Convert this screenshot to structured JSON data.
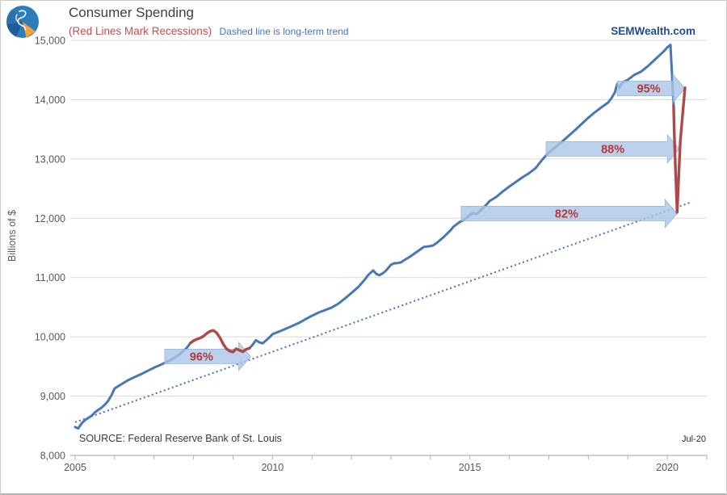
{
  "header": {
    "title": "Consumer Spending",
    "subtitle_red": "(Red Lines Mark Recessions)",
    "subtitle_trend": "Dashed line is long-term trend",
    "website": "SEMWealth.com"
  },
  "colors": {
    "line_blue": "#4878b4",
    "recession_red": "#ad4a47",
    "trend_blue": "#4472c4",
    "arrow_fill": "#aac4e5",
    "arrow_stroke": "#93b3da",
    "arrow_label": "#b23b3b",
    "grid": "#d9d9d9",
    "axis": "#b0b0b0",
    "axis_text": "#595959"
  },
  "chart_data": {
    "type": "line",
    "title": "Consumer Spending",
    "ylabel": "Billions of $",
    "source": "SOURCE:  Federal Reserve Bank of St. Louis",
    "last_point_label": "Jul-20",
    "grid": true,
    "y_axis": {
      "min": 8000,
      "max": 15000,
      "step": 1000,
      "values": [
        15000,
        14000,
        13000,
        12000,
        11000,
        10000,
        9000,
        8000
      ],
      "labels": [
        "15,000",
        "14,000",
        "13,000",
        "12,000",
        "11,000",
        "10,000",
        "9,000",
        "8,000"
      ]
    },
    "x_axis": {
      "min_year": 2005,
      "max_year": 2021,
      "labeled_values": [
        2005,
        2010,
        2015,
        2020
      ],
      "labeled_ticks": [
        "2005",
        "2010",
        "2015",
        "2020"
      ]
    },
    "trend": {
      "name": "long-term trend",
      "style": "dotted",
      "points": [
        [
          2005.0,
          8560
        ],
        [
          2020.6,
          12270
        ]
      ]
    },
    "series": [
      {
        "name": "consumer-spending-2005-2007",
        "role": "spending",
        "points": [
          [
            2005.0,
            8480
          ],
          [
            2005.08,
            8455
          ],
          [
            2005.17,
            8545
          ],
          [
            2005.25,
            8595
          ],
          [
            2005.33,
            8630
          ],
          [
            2005.42,
            8670
          ],
          [
            2005.5,
            8725
          ],
          [
            2005.58,
            8765
          ],
          [
            2005.67,
            8805
          ],
          [
            2005.75,
            8855
          ],
          [
            2005.83,
            8915
          ],
          [
            2005.92,
            9015
          ],
          [
            2006.0,
            9130
          ],
          [
            2006.17,
            9200
          ],
          [
            2006.33,
            9265
          ],
          [
            2006.5,
            9320
          ],
          [
            2006.67,
            9370
          ],
          [
            2006.83,
            9425
          ],
          [
            2007.0,
            9480
          ],
          [
            2007.17,
            9530
          ],
          [
            2007.33,
            9580
          ],
          [
            2007.5,
            9640
          ],
          [
            2007.67,
            9720
          ],
          [
            2007.83,
            9815
          ],
          [
            2007.92,
            9895
          ]
        ]
      },
      {
        "name": "consumer-spending-2009-2020",
        "role": "spending",
        "points": [
          [
            2009.42,
            9810
          ],
          [
            2009.5,
            9870
          ],
          [
            2009.58,
            9945
          ],
          [
            2009.67,
            9905
          ],
          [
            2009.75,
            9890
          ],
          [
            2009.83,
            9935
          ],
          [
            2009.92,
            9990
          ],
          [
            2010.0,
            10045
          ],
          [
            2010.17,
            10090
          ],
          [
            2010.33,
            10135
          ],
          [
            2010.5,
            10185
          ],
          [
            2010.67,
            10235
          ],
          [
            2010.83,
            10295
          ],
          [
            2011.0,
            10355
          ],
          [
            2011.17,
            10410
          ],
          [
            2011.33,
            10450
          ],
          [
            2011.5,
            10495
          ],
          [
            2011.67,
            10560
          ],
          [
            2011.83,
            10645
          ],
          [
            2012.0,
            10740
          ],
          [
            2012.17,
            10840
          ],
          [
            2012.33,
            10960
          ],
          [
            2012.42,
            11040
          ],
          [
            2012.55,
            11120
          ],
          [
            2012.63,
            11060
          ],
          [
            2012.71,
            11040
          ],
          [
            2012.79,
            11070
          ],
          [
            2012.88,
            11120
          ],
          [
            2013.0,
            11215
          ],
          [
            2013.08,
            11240
          ],
          [
            2013.17,
            11245
          ],
          [
            2013.25,
            11255
          ],
          [
            2013.33,
            11290
          ],
          [
            2013.5,
            11360
          ],
          [
            2013.67,
            11440
          ],
          [
            2013.83,
            11515
          ],
          [
            2013.92,
            11525
          ],
          [
            2014.0,
            11530
          ],
          [
            2014.08,
            11545
          ],
          [
            2014.17,
            11590
          ],
          [
            2014.33,
            11680
          ],
          [
            2014.5,
            11790
          ],
          [
            2014.58,
            11855
          ],
          [
            2014.67,
            11900
          ],
          [
            2014.75,
            11940
          ],
          [
            2014.83,
            11965
          ],
          [
            2014.92,
            12010
          ],
          [
            2015.0,
            12060
          ],
          [
            2015.08,
            12085
          ],
          [
            2015.17,
            12070
          ],
          [
            2015.25,
            12120
          ],
          [
            2015.33,
            12170
          ],
          [
            2015.42,
            12230
          ],
          [
            2015.5,
            12290
          ],
          [
            2015.67,
            12360
          ],
          [
            2015.83,
            12450
          ],
          [
            2016.0,
            12535
          ],
          [
            2016.17,
            12615
          ],
          [
            2016.33,
            12690
          ],
          [
            2016.5,
            12760
          ],
          [
            2016.67,
            12850
          ],
          [
            2016.83,
            12985
          ],
          [
            2017.0,
            13110
          ],
          [
            2017.17,
            13200
          ],
          [
            2017.33,
            13290
          ],
          [
            2017.5,
            13390
          ],
          [
            2017.67,
            13490
          ],
          [
            2017.83,
            13590
          ],
          [
            2018.0,
            13695
          ],
          [
            2018.17,
            13790
          ],
          [
            2018.33,
            13870
          ],
          [
            2018.5,
            13950
          ],
          [
            2018.58,
            14020
          ],
          [
            2018.67,
            14120
          ],
          [
            2018.73,
            14265
          ],
          [
            2018.79,
            14200
          ],
          [
            2018.85,
            14280
          ],
          [
            2018.92,
            14310
          ],
          [
            2019.0,
            14335
          ],
          [
            2019.17,
            14420
          ],
          [
            2019.33,
            14470
          ],
          [
            2019.5,
            14560
          ],
          [
            2019.67,
            14665
          ],
          [
            2019.83,
            14765
          ],
          [
            2019.92,
            14820
          ],
          [
            2020.0,
            14880
          ],
          [
            2020.08,
            14925
          ],
          [
            2020.16,
            13900
          ]
        ]
      },
      {
        "name": "recession-2008-2009",
        "role": "recession",
        "points": [
          [
            2007.92,
            9895
          ],
          [
            2008.0,
            9935
          ],
          [
            2008.08,
            9960
          ],
          [
            2008.17,
            9980
          ],
          [
            2008.25,
            10010
          ],
          [
            2008.33,
            10055
          ],
          [
            2008.42,
            10095
          ],
          [
            2008.5,
            10110
          ],
          [
            2008.58,
            10070
          ],
          [
            2008.67,
            9985
          ],
          [
            2008.75,
            9880
          ],
          [
            2008.83,
            9800
          ],
          [
            2008.92,
            9760
          ],
          [
            2009.0,
            9745
          ],
          [
            2009.08,
            9800
          ],
          [
            2009.17,
            9770
          ],
          [
            2009.25,
            9750
          ],
          [
            2009.33,
            9790
          ],
          [
            2009.42,
            9810
          ]
        ]
      },
      {
        "name": "recession-2020",
        "role": "recession",
        "points": [
          [
            2020.16,
            13900
          ],
          [
            2020.18,
            13400
          ],
          [
            2020.21,
            12800
          ],
          [
            2020.25,
            12100
          ],
          [
            2020.29,
            12700
          ],
          [
            2020.33,
            13300
          ],
          [
            2020.38,
            13680
          ],
          [
            2020.42,
            13990
          ],
          [
            2020.45,
            14200
          ]
        ]
      }
    ],
    "arrows": [
      {
        "label": "96%",
        "from_year": 2007.27,
        "to_year": 2009.45,
        "value": 9670,
        "label_year": 2008.2
      },
      {
        "label": "82%",
        "from_year": 2014.78,
        "to_year": 2020.25,
        "value": 12080,
        "label_year": 2017.45
      },
      {
        "label": "88%",
        "from_year": 2016.93,
        "to_year": 2020.31,
        "value": 13170,
        "label_year": 2018.62
      },
      {
        "label": "95%",
        "from_year": 2018.73,
        "to_year": 2020.45,
        "value": 14190,
        "label_year": 2019.53
      }
    ]
  }
}
